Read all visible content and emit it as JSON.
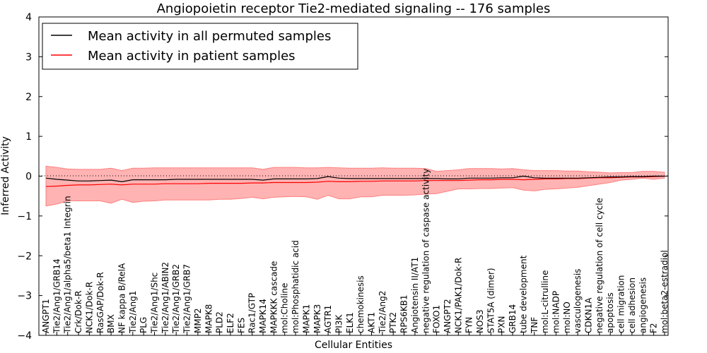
{
  "chart_data": {
    "type": "line",
    "title": "Angiopoietin receptor Tie2-mediated signaling -- 176 samples",
    "xlabel": "Cellular Entities",
    "ylabel": "Inferred Activity",
    "ylim": [
      -4,
      4
    ],
    "yticks": [
      -4,
      -3,
      -2,
      -1,
      0,
      1,
      2,
      3,
      4
    ],
    "ytick_labels": [
      "−4",
      "−3",
      "−2",
      "−1",
      "0",
      "1",
      "2",
      "3",
      "4"
    ],
    "zero_line": true,
    "legend": {
      "position": "top-left",
      "entries": [
        {
          "label": "Mean activity in all permuted samples",
          "color": "#000000"
        },
        {
          "label": "Mean activity in patient samples",
          "color": "#ff0000"
        }
      ]
    },
    "categories": [
      "ANGPT1",
      "Tie2/Ang1/GRB14",
      "Tie2/Ang1/alpha5/beta1 Integrin",
      "Crk/Dok-R",
      "NCK1/Dok-R",
      "RasGAP/Dok-R",
      "BMX",
      "NF kappa B/RelA",
      "Tie2/Ang1",
      "PLG",
      "Tie2/Ang1/Shc",
      "Tie2/Ang1/ABIN2",
      "Tie2/Ang1/GRB2",
      "Tie2/Ang1/GRB7",
      "MMP2",
      "MAPK8",
      "PLD2",
      "ELF2",
      "FES",
      "Rac1/GTP",
      "MAPK14",
      "MAPKKK cascade",
      "mol:Choline",
      "mol:Phosphatidic acid",
      "MAPK1",
      "MAPK3",
      "AGTR1",
      "PI3K",
      "ELK1",
      "chemokinesis",
      "AKT1",
      "Tie2/Ang2",
      "PTK2",
      "RPS6KB1",
      "Angiotensin II/AT1",
      "negative regulation of caspase activity",
      "FOXO1",
      "ANGPT2",
      "NCK1/PAK1/Dok-R",
      "FYN",
      "NOS3",
      "STAT5A (dimer)",
      "PXN",
      "GRB14",
      "tube development",
      "TNF",
      "mol:L-citrulline",
      "mol:NADP",
      "mol:NO",
      "vasculogenesis",
      "CDKN1A",
      "negative regulation of cell cycle",
      "apoptosis",
      "cell migration",
      "cell adhesion",
      "angiogenesis",
      "F2",
      "mol:beta2-estradiol"
    ],
    "series": [
      {
        "name": "Mean activity in all permuted samples",
        "color": "#000000",
        "values": [
          -0.05,
          -0.08,
          -0.1,
          -0.12,
          -0.12,
          -0.11,
          -0.1,
          -0.14,
          -0.09,
          -0.09,
          -0.09,
          -0.09,
          -0.08,
          -0.08,
          -0.08,
          -0.08,
          -0.08,
          -0.08,
          -0.08,
          -0.08,
          -0.1,
          -0.07,
          -0.07,
          -0.07,
          -0.07,
          -0.06,
          -0.01,
          -0.05,
          -0.06,
          -0.06,
          -0.06,
          -0.06,
          -0.06,
          -0.06,
          -0.06,
          -0.06,
          -0.06,
          -0.07,
          -0.07,
          -0.05,
          -0.05,
          -0.05,
          -0.04,
          -0.04,
          0.0,
          -0.04,
          -0.05,
          -0.05,
          -0.05,
          -0.05,
          -0.04,
          -0.03,
          -0.02,
          -0.02,
          -0.01,
          -0.01,
          0.0,
          0.0
        ]
      },
      {
        "name": "Mean activity in patient samples",
        "color": "#ff0000",
        "values": [
          -0.26,
          -0.25,
          -0.23,
          -0.22,
          -0.22,
          -0.21,
          -0.2,
          -0.22,
          -0.2,
          -0.2,
          -0.2,
          -0.19,
          -0.19,
          -0.19,
          -0.19,
          -0.18,
          -0.18,
          -0.18,
          -0.18,
          -0.17,
          -0.17,
          -0.16,
          -0.16,
          -0.16,
          -0.16,
          -0.15,
          -0.13,
          -0.14,
          -0.14,
          -0.13,
          -0.13,
          -0.12,
          -0.12,
          -0.12,
          -0.12,
          -0.11,
          -0.11,
          -0.11,
          -0.11,
          -0.1,
          -0.09,
          -0.09,
          -0.08,
          -0.08,
          -0.09,
          -0.08,
          -0.07,
          -0.07,
          -0.06,
          -0.06,
          -0.05,
          -0.04,
          -0.04,
          -0.03,
          -0.02,
          -0.02,
          -0.01,
          0.0
        ]
      }
    ],
    "band": {
      "name": "patient samples spread",
      "color": "#ff8080",
      "upper": [
        0.25,
        0.22,
        0.18,
        0.17,
        0.17,
        0.17,
        0.2,
        0.14,
        0.2,
        0.2,
        0.21,
        0.21,
        0.21,
        0.21,
        0.21,
        0.21,
        0.21,
        0.21,
        0.21,
        0.21,
        0.17,
        0.22,
        0.22,
        0.22,
        0.21,
        0.21,
        0.22,
        0.21,
        0.2,
        0.2,
        0.2,
        0.21,
        0.2,
        0.2,
        0.2,
        0.19,
        0.12,
        0.14,
        0.16,
        0.19,
        0.19,
        0.19,
        0.18,
        0.19,
        0.16,
        0.14,
        0.14,
        0.14,
        0.13,
        0.13,
        0.11,
        0.1,
        0.08,
        0.09,
        0.09,
        0.12,
        0.12,
        0.1
      ],
      "lower": [
        -0.75,
        -0.7,
        -0.62,
        -0.62,
        -0.62,
        -0.62,
        -0.68,
        -0.58,
        -0.66,
        -0.63,
        -0.62,
        -0.6,
        -0.6,
        -0.6,
        -0.6,
        -0.6,
        -0.58,
        -0.58,
        -0.56,
        -0.53,
        -0.57,
        -0.53,
        -0.52,
        -0.51,
        -0.52,
        -0.58,
        -0.48,
        -0.57,
        -0.57,
        -0.52,
        -0.52,
        -0.48,
        -0.48,
        -0.48,
        -0.47,
        -0.45,
        -0.44,
        -0.38,
        -0.32,
        -0.32,
        -0.31,
        -0.31,
        -0.3,
        -0.29,
        -0.35,
        -0.37,
        -0.33,
        -0.32,
        -0.3,
        -0.28,
        -0.24,
        -0.2,
        -0.16,
        -0.1,
        -0.08,
        -0.05,
        -0.08,
        -0.05
      ]
    }
  }
}
